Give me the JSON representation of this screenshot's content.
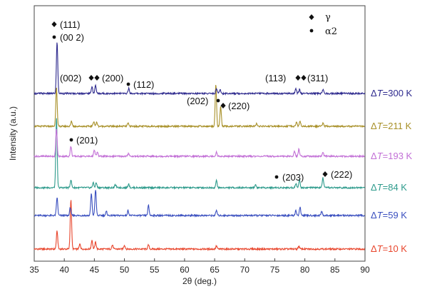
{
  "chart_data": {
    "type": "line",
    "xlabel": "2θ (deg.)",
    "ylabel": "Intensity (a.u.)",
    "xlim": [
      35,
      90
    ],
    "x_ticks": [
      35,
      40,
      45,
      50,
      55,
      60,
      65,
      70,
      75,
      80,
      85,
      90
    ],
    "grid": false,
    "legend": {
      "placement": "top-right",
      "entries": [
        {
          "marker": "diamond",
          "label": "γ"
        },
        {
          "marker": "dot",
          "label": "α2"
        }
      ]
    },
    "series": [
      {
        "name": "ΔT=10 K",
        "label_prefix": "Δ",
        "label_var": "T",
        "label_rest": "=10 K",
        "color": "#e8452c",
        "baseline": 0,
        "peaks": [
          [
            38.8,
            18
          ],
          [
            41.1,
            50
          ],
          [
            42.6,
            5
          ],
          [
            44.6,
            9
          ],
          [
            45.2,
            7
          ],
          [
            48.0,
            4
          ],
          [
            50.0,
            4
          ],
          [
            54.0,
            4
          ],
          [
            65.3,
            3
          ],
          [
            79.0,
            3
          ]
        ]
      },
      {
        "name": "ΔT=59 K",
        "label_prefix": "Δ",
        "label_var": "T",
        "label_rest": "=59 K",
        "color": "#3a4fbf",
        "baseline": 1,
        "peaks": [
          [
            38.8,
            18
          ],
          [
            41.0,
            8
          ],
          [
            44.5,
            22
          ],
          [
            45.2,
            26
          ],
          [
            47.0,
            4
          ],
          [
            50.6,
            5
          ],
          [
            54.0,
            10
          ],
          [
            65.3,
            5
          ],
          [
            78.5,
            5
          ],
          [
            79.2,
            8
          ],
          [
            82.8,
            4
          ]
        ]
      },
      {
        "name": "ΔT=84 K",
        "label_prefix": "Δ",
        "label_var": "T",
        "label_rest": "=84 K",
        "color": "#2e9b8c",
        "baseline": 2,
        "peaks": [
          [
            38.7,
            70
          ],
          [
            41.1,
            8
          ],
          [
            44.8,
            5
          ],
          [
            45.3,
            5
          ],
          [
            48.5,
            3
          ],
          [
            50.7,
            4
          ],
          [
            65.3,
            7
          ],
          [
            71.8,
            3
          ],
          [
            78.5,
            4
          ],
          [
            79.1,
            8
          ],
          [
            83.0,
            10
          ]
        ]
      },
      {
        "name": "ΔT=193 K",
        "label_prefix": "Δ",
        "label_var": "T",
        "label_rest": "=193 K",
        "color": "#c26fd6",
        "baseline": 3,
        "peaks": [
          [
            38.7,
            28
          ],
          [
            41.1,
            10
          ],
          [
            45.0,
            6
          ],
          [
            45.5,
            4
          ],
          [
            50.7,
            3
          ],
          [
            65.3,
            4
          ],
          [
            78.3,
            5
          ],
          [
            79.0,
            7
          ],
          [
            83.0,
            4
          ]
        ]
      },
      {
        "name": "ΔT=211 K",
        "label_prefix": "Δ",
        "label_var": "T",
        "label_rest": "=211 K",
        "color": "#a89028",
        "baseline": 4,
        "peaks": [
          [
            38.7,
            40
          ],
          [
            41.2,
            5
          ],
          [
            44.9,
            5
          ],
          [
            45.4,
            4
          ],
          [
            50.6,
            3
          ],
          [
            65.2,
            42
          ],
          [
            66.0,
            20
          ],
          [
            72.0,
            3
          ],
          [
            78.6,
            4
          ],
          [
            79.2,
            5
          ],
          [
            83.0,
            3
          ]
        ]
      },
      {
        "name": "ΔT=300 K",
        "label_prefix": "Δ",
        "label_var": "T",
        "label_rest": "=300 K",
        "color": "#2e2a8e",
        "baseline": 5,
        "peaks": [
          [
            38.8,
            52
          ],
          [
            44.6,
            7
          ],
          [
            45.2,
            8
          ],
          [
            50.7,
            5
          ],
          [
            65.3,
            5
          ],
          [
            65.9,
            4
          ],
          [
            78.5,
            5
          ],
          [
            79.1,
            4
          ],
          [
            83.0,
            4
          ]
        ]
      }
    ],
    "annotations": [
      {
        "text": "(111)",
        "marker": "diamond"
      },
      {
        "text": "(00 2)",
        "marker": "dot"
      },
      {
        "text": "(002)",
        "marker": "diamond-pair"
      },
      {
        "text": "(200)",
        "marker": "none"
      },
      {
        "text": "(112)",
        "marker": "dot"
      },
      {
        "text": "(113)",
        "marker": "diamond-pair"
      },
      {
        "text": "(311)",
        "marker": "none"
      },
      {
        "text": "(202)",
        "marker": "dot"
      },
      {
        "text": "(220)",
        "marker": "diamond"
      },
      {
        "text": "(201)",
        "marker": "dot"
      },
      {
        "text": "(203)",
        "marker": "dot"
      },
      {
        "text": "(222)",
        "marker": "diamond"
      }
    ]
  }
}
